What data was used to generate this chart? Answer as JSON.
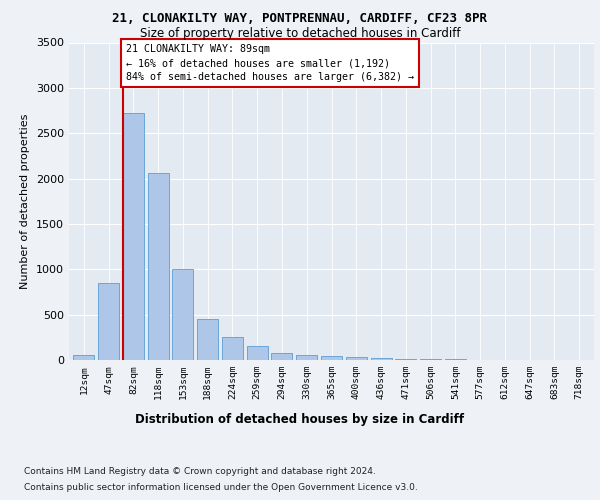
{
  "title1": "21, CLONAKILTY WAY, PONTPRENNAU, CARDIFF, CF23 8PR",
  "title2": "Size of property relative to detached houses in Cardiff",
  "xlabel": "Distribution of detached houses by size in Cardiff",
  "ylabel": "Number of detached properties",
  "bin_labels": [
    "12sqm",
    "47sqm",
    "82sqm",
    "118sqm",
    "153sqm",
    "188sqm",
    "224sqm",
    "259sqm",
    "294sqm",
    "330sqm",
    "365sqm",
    "400sqm",
    "436sqm",
    "471sqm",
    "506sqm",
    "541sqm",
    "577sqm",
    "612sqm",
    "647sqm",
    "683sqm",
    "718sqm"
  ],
  "bar_values": [
    50,
    850,
    2720,
    2060,
    1000,
    450,
    250,
    155,
    75,
    50,
    40,
    35,
    25,
    15,
    10,
    8,
    5,
    4,
    3,
    2,
    2
  ],
  "bar_color": "#aec6e8",
  "bar_edge_color": "#5a9fd4",
  "highlight_bin": 2,
  "red_line_color": "#cc0000",
  "annotation_text": "21 CLONAKILTY WAY: 89sqm\n← 16% of detached houses are smaller (1,192)\n84% of semi-detached houses are larger (6,382) →",
  "annotation_box_color": "#ffffff",
  "annotation_box_edge_color": "#cc0000",
  "ylim": [
    0,
    3500
  ],
  "yticks": [
    0,
    500,
    1000,
    1500,
    2000,
    2500,
    3000,
    3500
  ],
  "footnote1": "Contains HM Land Registry data © Crown copyright and database right 2024.",
  "footnote2": "Contains public sector information licensed under the Open Government Licence v3.0.",
  "bg_color": "#eef2f7",
  "plot_bg_color": "#e4eaf2"
}
